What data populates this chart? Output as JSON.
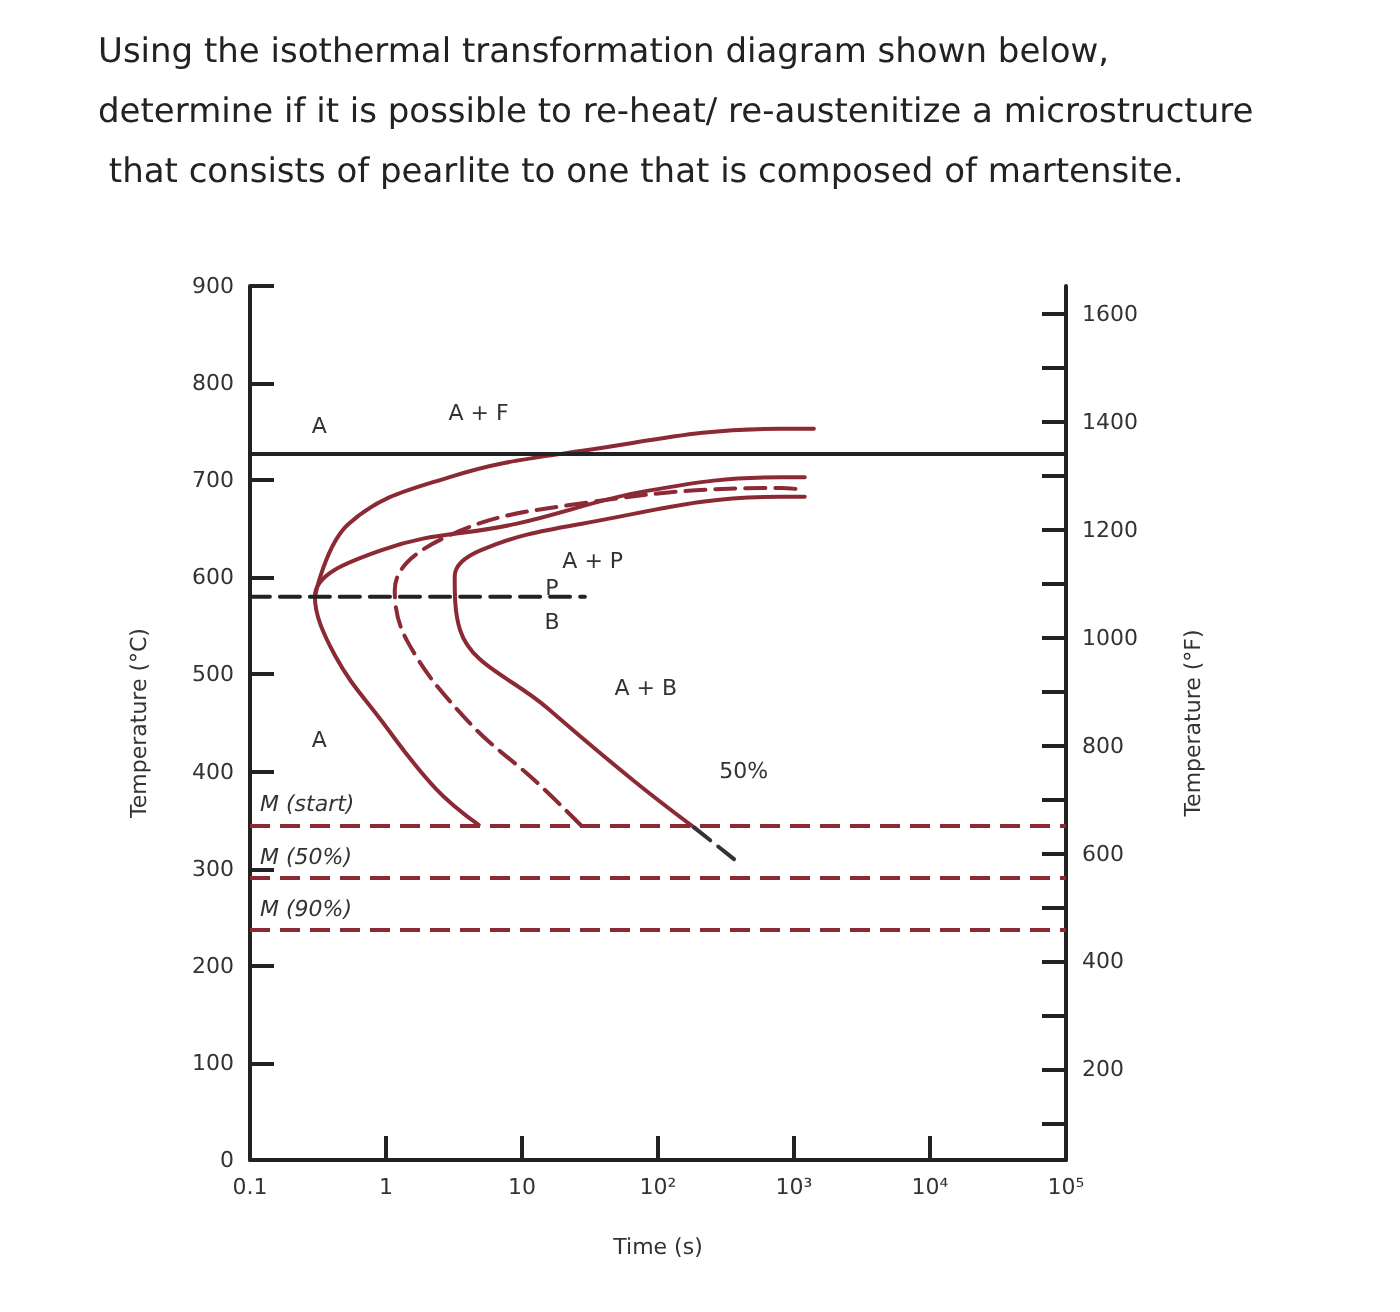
{
  "chart_data": {
    "type": "line",
    "title": "Using the isothermal transformation diagram shown below, determine if it is possible to re-heat/ re-austenitize a microstructure that consists of pearlite to one that is composed of martensite.",
    "xlabel": "Time (s)",
    "ylabel": "Temperature (°C)",
    "y2label": "Temperature (°F)",
    "log": "x",
    "grid": false,
    "marker": "none",
    "xlim": [
      0.1,
      100000
    ],
    "xticks": [
      0.1,
      1,
      10,
      {
        "value": 100,
        "label": "10²"
      },
      {
        "value": 1000,
        "label": "10³"
      },
      {
        "value": 10000,
        "label": "10⁴"
      },
      {
        "value": 100000,
        "label": "10⁵"
      }
    ],
    "ylim": [
      0,
      900
    ],
    "yticks": [
      0,
      100,
      200,
      300,
      400,
      500,
      600,
      700,
      800,
      900
    ],
    "y2lim": [
      32,
      1652
    ],
    "y2ticks": [
      {
        "value": 100,
        "label": null
      },
      200,
      {
        "value": 300,
        "label": null
      },
      400,
      {
        "value": 500,
        "label": null
      },
      600,
      {
        "value": 700,
        "label": null
      },
      800,
      {
        "value": 900,
        "label": null
      },
      1000,
      {
        "value": 1100,
        "label": null
      },
      1200,
      {
        "value": 1300,
        "label": null
      },
      1400,
      {
        "value": 1500,
        "label": null
      },
      1600
    ],
    "series": [
      {
        "color": "#8b2a35",
        "line_style": "solid",
        "x": [
          0.3,
          0.53,
          2.9,
          27,
          800,
          1400
        ],
        "values": [
          580,
          655,
          703,
          730,
          753,
          753
        ]
      },
      {
        "color": "#8b2a35",
        "line_style": "solid",
        "x": [
          4.8,
          2.3,
          0.93,
          0.42,
          0.3,
          0.93,
          9,
          83,
          800,
          1200
        ],
        "values": [
          345,
          383,
          452,
          520,
          580,
          628,
          655,
          689,
          703,
          703
        ]
      },
      {
        "color": "#8b2a35",
        "line_style": "dashed",
        "x": [
          27,
          12.6,
          4,
          1.45,
          1.16,
          2.8,
          27,
          800,
          1200
        ],
        "values": [
          345,
          390,
          452,
          533,
          587,
          642,
          676,
          692,
          690
        ]
      },
      {
        "color": "#8b2a35",
        "line_style": "solid",
        "x": [
          186,
          67,
          15.5,
          3.5,
          3.2,
          5,
          27,
          800,
          1200
        ],
        "values": [
          342,
          390,
          465,
          546,
          601,
          628,
          655,
          683,
          683
        ]
      },
      {
        "color": "#333333",
        "line_style": "dashed",
        "x": [
          186,
          400
        ],
        "values": [
          342,
          305
        ]
      },
      {
        "color": "#222222",
        "line_style": "dashed",
        "x": [
          0.1,
          29
        ],
        "values": [
          580,
          580
        ]
      }
    ],
    "ref_lines": [
      {
        "axis": "y",
        "value": 727,
        "color": "#222222",
        "line_style": "solid"
      },
      {
        "axis": "y",
        "value": 345,
        "label": "M (start)",
        "color": "#8b2a35",
        "line_style": "dashed"
      },
      {
        "axis": "y",
        "value": 290,
        "label": "M (50%)",
        "color": "#8b2a35",
        "line_style": "dashed"
      },
      {
        "axis": "y",
        "value": 237,
        "label": "M (90%)",
        "color": "#8b2a35",
        "line_style": "dashed"
      }
    ],
    "annotations": [
      "A",
      "A",
      "A + F",
      "A + P",
      "P",
      "B",
      "A + B",
      "50%"
    ]
  }
}
